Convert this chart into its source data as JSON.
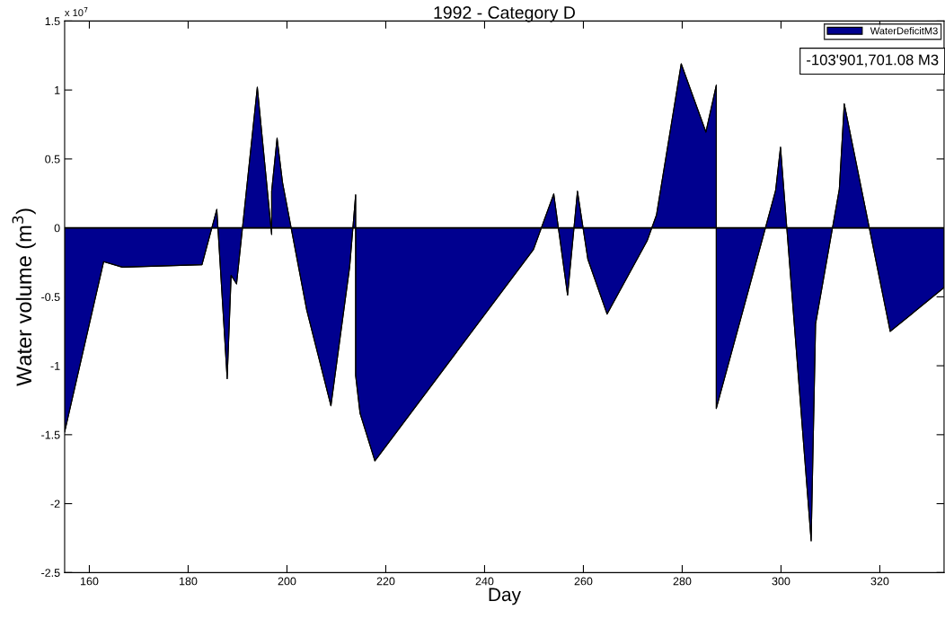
{
  "chart_data": {
    "type": "area",
    "title": "1992 - Category D",
    "xlabel": "Day",
    "ylabel": "Water volume (m$^{3}$)",
    "annotations": [
      "x 10$^{7}$",
      "-103'901,701.08 M3"
    ],
    "x": [
      155,
      162.9,
      166.7,
      182.8,
      185.8,
      187.9,
      188.7,
      189.8,
      194,
      196.9,
      196.9,
      198,
      199.1,
      204,
      208.9,
      212.7,
      213.9,
      213.9,
      214.8,
      217.8,
      249.9,
      254,
      256.8,
      258.8,
      260.9,
      264.8,
      272.9,
      274.8,
      279.8,
      284.8,
      286.9,
      286.9,
      298.9,
      299.9,
      306.1,
      307,
      311.8,
      312.8,
      322.1,
      333
    ],
    "series": [
      {
        "name": "WaterDeficitM3",
        "color": "#00008f",
        "values": [
          -1.48,
          -0.245,
          -0.285,
          -0.267,
          0.134,
          -1.093,
          -0.344,
          -0.406,
          1.02,
          -0.047,
          0.266,
          0.65,
          0.33,
          -0.596,
          -1.29,
          -0.28,
          0.24,
          -1.07,
          -1.345,
          -1.69,
          -0.156,
          0.246,
          -0.488,
          0.266,
          -0.227,
          -0.625,
          -0.094,
          0.094,
          1.19,
          0.695,
          1.035,
          -1.31,
          0.27,
          0.586,
          -2.27,
          -0.696,
          0.281,
          0.9,
          -0.751,
          -0.433
        ]
      }
    ],
    "xlim": [
      155,
      333
    ],
    "xticks": [
      160,
      180,
      200,
      220,
      240,
      260,
      280,
      300,
      320
    ],
    "ylim": [
      -2.5,
      1.5
    ],
    "yticks": [
      -2.5,
      -2,
      -1.5,
      -1,
      -0.5,
      0,
      0.5,
      1,
      1.5
    ],
    "ref_lines": [
      {
        "axis": "y",
        "value": 0,
        "color": "#000000"
      }
    ],
    "legend": "top right",
    "grid": false
  }
}
